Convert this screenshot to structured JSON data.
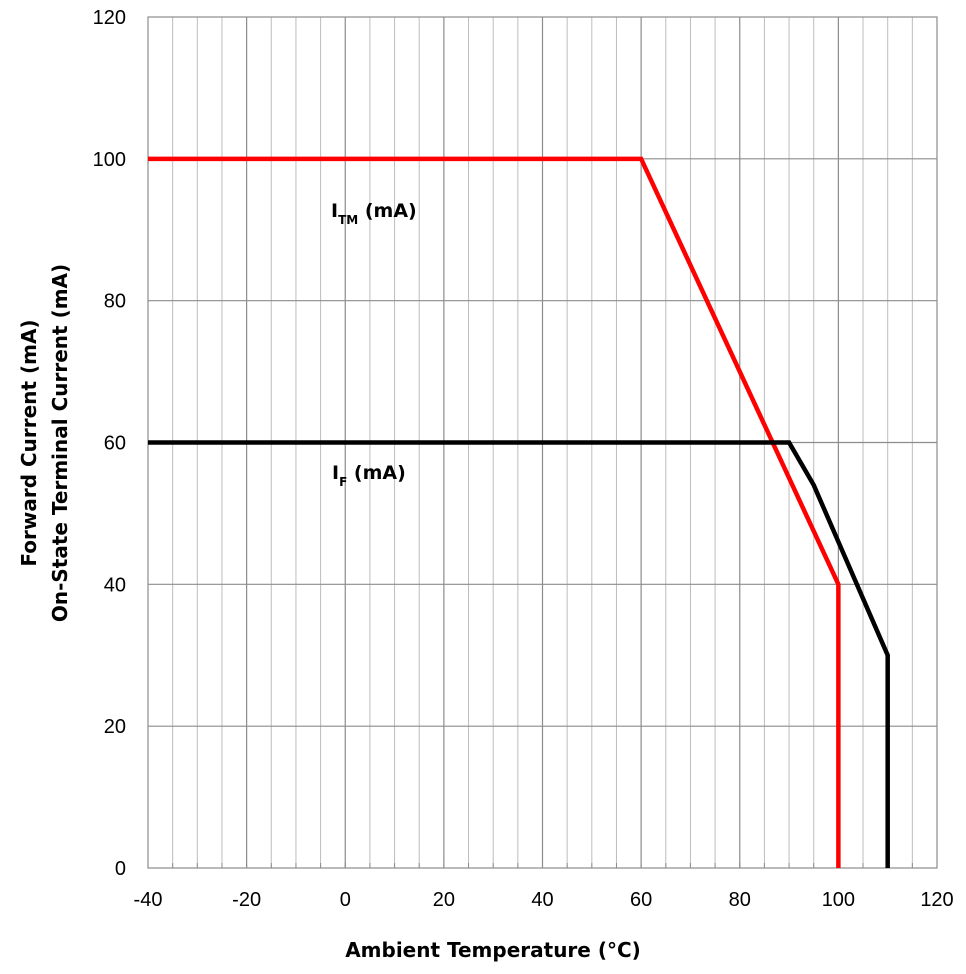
{
  "chart_data": {
    "type": "line",
    "xlabel": "Ambient Temperature (°C)",
    "ylabel": [
      "Forward Current (mA)",
      "On-State Terminal Current (mA)"
    ],
    "xlim": [
      -40,
      120
    ],
    "ylim": [
      0,
      120
    ],
    "x_ticks": [
      -40,
      -20,
      0,
      20,
      40,
      60,
      80,
      100,
      120
    ],
    "y_ticks": [
      0,
      20,
      40,
      60,
      80,
      100,
      120
    ],
    "x_minor_step": 5,
    "grid": true,
    "series": [
      {
        "label_main": "I",
        "label_sub": "TM",
        "label_unit": " (mA)",
        "color": "#ff0000",
        "points": [
          [
            -40,
            100
          ],
          [
            60,
            100
          ],
          [
            100,
            40
          ],
          [
            100,
            0
          ]
        ]
      },
      {
        "label_main": "I",
        "label_sub": "F",
        "label_unit": " (mA)",
        "color": "#000000",
        "points": [
          [
            -40,
            60
          ],
          [
            90,
            60
          ],
          [
            95,
            54
          ],
          [
            110,
            30
          ],
          [
            110,
            0
          ]
        ]
      }
    ]
  }
}
